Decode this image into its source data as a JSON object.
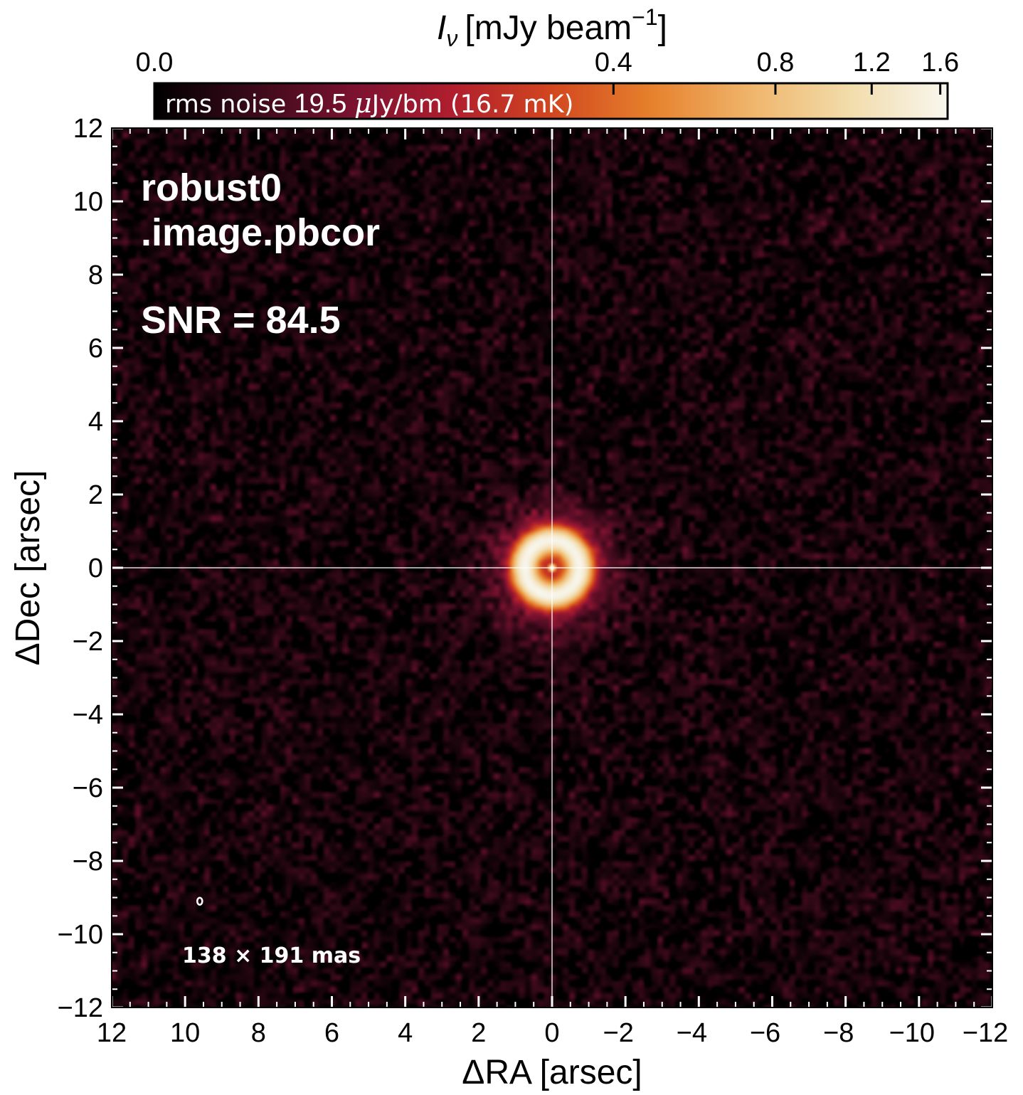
{
  "chart_data": {
    "type": "heatmap",
    "colorbar": {
      "label": "I_ν [mJy beam^-1]",
      "label_main": "I",
      "label_sub": "ν",
      "label_units": "[mJy beam",
      "label_exp": "−1",
      "label_close": "]",
      "ticks": [
        {
          "value": 0.0,
          "label": "0.0"
        },
        {
          "value": 0.4,
          "label": "0.4"
        },
        {
          "value": 0.8,
          "label": "0.8"
        },
        {
          "value": 1.2,
          "label": "1.2"
        },
        {
          "value": 1.6,
          "label": "1.6"
        }
      ],
      "vmin": 0.0,
      "vmax": 1.65,
      "stretch": "asinh",
      "colormap": [
        "#000000",
        "#3a0a1a",
        "#7a1230",
        "#b01e2e",
        "#d2461f",
        "#e6802c",
        "#efb46a",
        "#f2dcaa",
        "#f8f6ee"
      ]
    },
    "rms_note": {
      "prefix": "rms noise ",
      "value": "19.5 ",
      "mu": "μ",
      "suffix": "Jy/bm (16.7 mK)"
    },
    "x_axis": {
      "label": "ΔRA [arsec]",
      "range": [
        12,
        -12
      ],
      "ticks": [
        {
          "value": 12,
          "label": "12"
        },
        {
          "value": 10,
          "label": "10"
        },
        {
          "value": 8,
          "label": "8"
        },
        {
          "value": 6,
          "label": "6"
        },
        {
          "value": 4,
          "label": "4"
        },
        {
          "value": 2,
          "label": "2"
        },
        {
          "value": 0,
          "label": "0"
        },
        {
          "value": -2,
          "label": "−2"
        },
        {
          "value": -4,
          "label": "−4"
        },
        {
          "value": -6,
          "label": "−6"
        },
        {
          "value": -8,
          "label": "−8"
        },
        {
          "value": -10,
          "label": "−10"
        },
        {
          "value": -12,
          "label": "−12"
        }
      ]
    },
    "y_axis": {
      "label": "ΔDec [arsec]",
      "range": [
        -12,
        12
      ],
      "ticks": [
        {
          "value": 12,
          "label": "12"
        },
        {
          "value": 10,
          "label": "10"
        },
        {
          "value": 8,
          "label": "8"
        },
        {
          "value": 6,
          "label": "6"
        },
        {
          "value": 4,
          "label": "4"
        },
        {
          "value": 2,
          "label": "2"
        },
        {
          "value": 0,
          "label": "0"
        },
        {
          "value": -2,
          "label": "−2"
        },
        {
          "value": -4,
          "label": "−4"
        },
        {
          "value": -6,
          "label": "−6"
        },
        {
          "value": -8,
          "label": "−8"
        },
        {
          "value": -10,
          "label": "−10"
        },
        {
          "value": -12,
          "label": "−12"
        }
      ]
    },
    "annotations": {
      "image_name_line1": "robust0",
      "image_name_line2": ".image.pbcor",
      "snr": "SNR = 84.5",
      "beam": "138 × 191 mas"
    },
    "source": {
      "ring_radius_arcsec": 0.75,
      "ring_width_arcsec": 0.3,
      "ring_peak_mJy": 1.45,
      "halo_radius_arcsec": 1.5,
      "central_point_mJy": 1.6,
      "noise_rms_mJy": 0.0195
    },
    "beam": {
      "bmaj_mas": 191,
      "bmin_mas": 138,
      "x_arcsec": 9.6,
      "y_arcsec": -9.1
    },
    "crosshair": {
      "x": 0,
      "y": 0,
      "color": "#ffffff"
    }
  }
}
